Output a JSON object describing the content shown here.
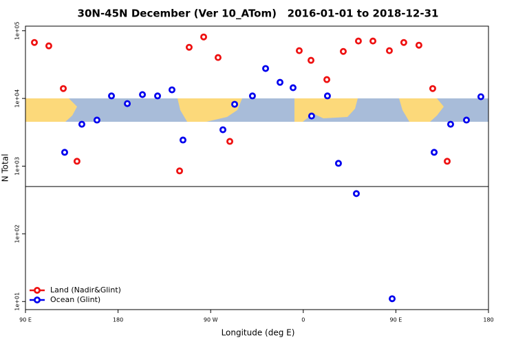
{
  "chart_data": {
    "type": "scatter",
    "title": "30N-45N December (Ver 10_ATom)   2016-01-01 to 2018-12-31",
    "x_label": "Longitude (deg E)",
    "y_label": "N Total",
    "xlim": [
      90,
      540
    ],
    "xticks": [
      {
        "value": 90,
        "label": "90 E"
      },
      180,
      {
        "value": 270,
        "label": "90 W"
      },
      {
        "value": 360,
        "label": "0"
      },
      {
        "value": 450,
        "label": "90 E"
      },
      {
        "value": 540,
        "label": "180"
      }
    ],
    "ylim": [
      7.6,
      117000
    ],
    "log_y": true,
    "yticks": [
      {
        "value": 10,
        "label": "1e+01"
      },
      {
        "value": 100,
        "label": "1e+02"
      },
      {
        "value": 1000,
        "label": "1e+03"
      },
      {
        "value": 10000,
        "label": "1e+04"
      },
      {
        "value": 100000,
        "label": "1e+05"
      }
    ],
    "hline": 500,
    "legend": "bottom-left",
    "series": [
      {
        "name": "Land (Nadir&Glint)",
        "color": "#ee1111",
        "x": [
          98.7,
          112.7,
          126.8,
          140.1,
          239.8,
          249.1,
          263.2,
          277.2,
          288.6,
          356.1,
          367.5,
          382.9,
          398.9,
          413.6,
          427.7,
          443.7,
          457.7,
          472.4,
          485.8,
          499.9
        ],
        "values": [
          67100,
          59800,
          14000,
          1180,
          850,
          57000,
          81000,
          40200,
          2320,
          50800,
          36600,
          19000,
          49500,
          70500,
          70500,
          50800,
          67100,
          61200,
          14000,
          1180
        ]
      },
      {
        "name": "Ocean (Glint)",
        "color": "#0000ee",
        "x": [
          128.1,
          144.8,
          159.5,
          173.6,
          189.0,
          203.7,
          218.4,
          232.4,
          243.1,
          281.9,
          293.3,
          310.6,
          323.4,
          337.4,
          350.1,
          368.1,
          383.5,
          394.2,
          411.6,
          446.4,
          487.2,
          503.2,
          518.6,
          532.6
        ],
        "values": [
          1600,
          4160,
          4790,
          10900,
          8390,
          11400,
          10900,
          13400,
          2430,
          3450,
          8200,
          10900,
          27700,
          17300,
          14400,
          5500,
          10900,
          1100,
          393,
          11,
          1600,
          4160,
          4790,
          10600
        ]
      }
    ]
  }
}
